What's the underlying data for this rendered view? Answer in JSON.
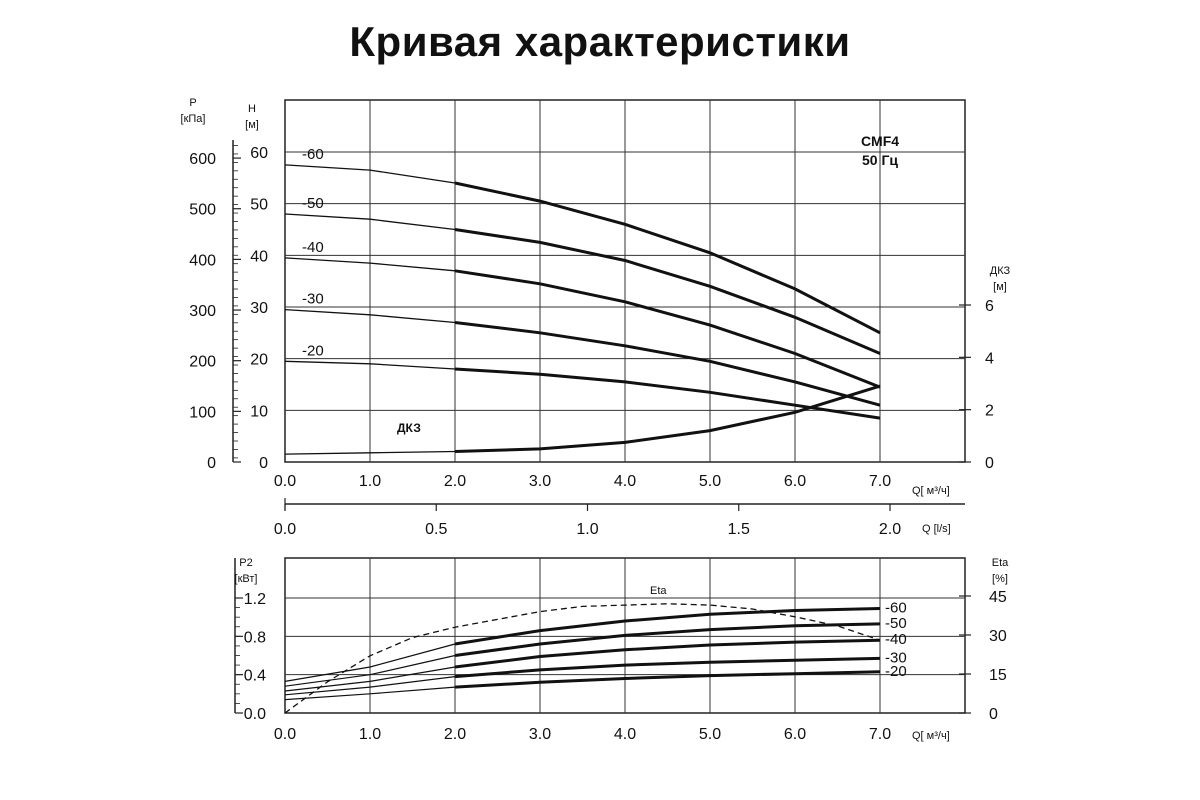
{
  "title": "Кривая характеристики",
  "chart_data": [
    {
      "type": "line",
      "model_label": "CMF4",
      "freq_label": "50 Гц",
      "xlabel": "Q[ м³/ч]",
      "x_ticks": [
        "0.0",
        "1.0",
        "2.0",
        "3.0",
        "4.0",
        "5.0",
        "6.0",
        "7.0"
      ],
      "xlim": [
        0,
        7
      ],
      "ylabel_left": "H",
      "ylabel_left_unit": "[м]",
      "ylim": [
        0,
        60
      ],
      "y_ticks_left": [
        "0",
        "10",
        "20",
        "30",
        "40",
        "50",
        "60"
      ],
      "ylabel_pressure": "P",
      "ylabel_pressure_unit": "[кПа]",
      "pressure_ticks": [
        "0",
        "100",
        "200",
        "300",
        "400",
        "500",
        "600"
      ],
      "ylabel_right": "ДКЗ",
      "ylabel_right_unit": "[м]",
      "y_ticks_right": [
        "0",
        "2",
        "4",
        "6"
      ],
      "ylim_right": [
        0,
        6
      ],
      "series": [
        {
          "name": "-60",
          "x": [
            0,
            1,
            2,
            3,
            4,
            5,
            6,
            7
          ],
          "y": [
            57.5,
            56.5,
            54,
            50.5,
            46,
            40.5,
            33.5,
            25
          ]
        },
        {
          "name": "-50",
          "x": [
            0,
            1,
            2,
            3,
            4,
            5,
            6,
            7
          ],
          "y": [
            48,
            47,
            45,
            42.5,
            39,
            34,
            28,
            21
          ]
        },
        {
          "name": "-40",
          "x": [
            0,
            1,
            2,
            3,
            4,
            5,
            6,
            7
          ],
          "y": [
            39.5,
            38.5,
            37,
            34.5,
            31,
            26.5,
            21,
            14.5
          ]
        },
        {
          "name": "-30",
          "x": [
            0,
            1,
            2,
            3,
            4,
            5,
            6,
            7
          ],
          "y": [
            29.5,
            28.5,
            27,
            25,
            22.5,
            19.5,
            15.5,
            11
          ]
        },
        {
          "name": "-20",
          "x": [
            0,
            1,
            2,
            3,
            4,
            5,
            6,
            7
          ],
          "y": [
            19.5,
            19,
            18,
            17,
            15.5,
            13.5,
            11,
            8.5
          ]
        }
      ],
      "npsh": {
        "name": "ДКЗ",
        "x": [
          0,
          1,
          2,
          3,
          4,
          5,
          6,
          7
        ],
        "y": [
          0.3,
          0.35,
          0.4,
          0.5,
          0.75,
          1.2,
          1.9,
          2.9
        ]
      }
    },
    {
      "type": "axis",
      "xlabel": "Q [l/s]",
      "x_ticks": [
        "0.0",
        "0.5",
        "1.0",
        "1.5",
        "2.0"
      ],
      "xlim": [
        0,
        2
      ]
    },
    {
      "type": "line",
      "xlabel": "Q[ м³/ч]",
      "x_ticks": [
        "0.0",
        "1.0",
        "2.0",
        "3.0",
        "4.0",
        "5.0",
        "6.0",
        "7.0"
      ],
      "xlim": [
        0,
        7
      ],
      "ylabel_left": "P2",
      "ylabel_left_unit": "[кВт]",
      "y_ticks_left": [
        "0.0",
        "0.4",
        "0.8",
        "1.2"
      ],
      "ylim": [
        0,
        1.2
      ],
      "ylabel_right": "Eta",
      "ylabel_right_unit": "[%]",
      "y_ticks_right": [
        "0",
        "15",
        "30",
        "45"
      ],
      "ylim_right": [
        0,
        45
      ],
      "series": [
        {
          "name": "-60",
          "x": [
            0,
            1,
            2,
            3,
            4,
            5,
            6,
            7
          ],
          "y": [
            0.33,
            0.48,
            0.72,
            0.86,
            0.96,
            1.03,
            1.07,
            1.09
          ]
        },
        {
          "name": "-50",
          "x": [
            0,
            1,
            2,
            3,
            4,
            5,
            6,
            7
          ],
          "y": [
            0.28,
            0.4,
            0.6,
            0.72,
            0.81,
            0.87,
            0.91,
            0.93
          ]
        },
        {
          "name": "-40",
          "x": [
            0,
            1,
            2,
            3,
            4,
            5,
            6,
            7
          ],
          "y": [
            0.23,
            0.33,
            0.48,
            0.59,
            0.66,
            0.71,
            0.74,
            0.76
          ]
        },
        {
          "name": "-30",
          "x": [
            0,
            1,
            2,
            3,
            4,
            5,
            6,
            7
          ],
          "y": [
            0.19,
            0.27,
            0.38,
            0.45,
            0.5,
            0.53,
            0.55,
            0.57
          ]
        },
        {
          "name": "-20",
          "x": [
            0,
            1,
            2,
            3,
            4,
            5,
            6,
            7
          ],
          "y": [
            0.14,
            0.2,
            0.27,
            0.32,
            0.36,
            0.39,
            0.41,
            0.43
          ]
        }
      ],
      "eta": {
        "name": "Eta",
        "x": [
          0,
          0.5,
          1,
          1.5,
          2,
          2.5,
          3,
          3.5,
          4,
          4.5,
          5,
          5.5,
          6,
          6.5,
          7
        ],
        "y": [
          0,
          12,
          22,
          29,
          33,
          36,
          39,
          41,
          41.5,
          42,
          41.5,
          40,
          37,
          33.5,
          28
        ]
      }
    }
  ]
}
